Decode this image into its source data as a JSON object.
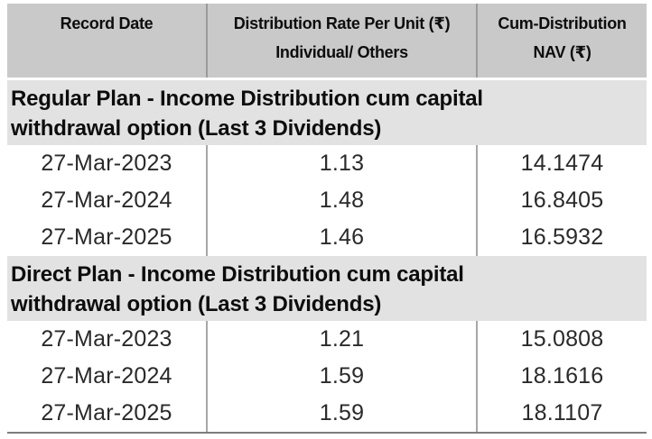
{
  "table": {
    "colors": {
      "header_bg": "#c9c9c9",
      "section_bg": "#e2e2e2",
      "divider": "#a8a8a8",
      "header_divider": "#9b9b9b",
      "bottom_border": "#7d7d7d",
      "header_text": "#0d0d0d",
      "data_text": "#2a2a2a"
    },
    "columns": [
      {
        "line1": "Record Date",
        "line2": ""
      },
      {
        "line1": "Distribution Rate Per Unit  (₹)",
        "line2": "Individual/ Others"
      },
      {
        "line1": "Cum-Distribution",
        "line2": "NAV (₹)"
      }
    ],
    "sections": [
      {
        "title": "Regular Plan - Income Distribution cum capital withdrawal option (Last 3 Dividends)",
        "title_line1": "Regular Plan - Income Distribution cum capital",
        "title_line2": "withdrawal option (Last 3 Dividends)",
        "rows": [
          {
            "record_date": "27-Mar-2023",
            "rate": "1.13",
            "nav": "14.1474"
          },
          {
            "record_date": "27-Mar-2024",
            "rate": "1.48",
            "nav": "16.8405"
          },
          {
            "record_date": "27-Mar-2025",
            "rate": "1.46",
            "nav": "16.5932"
          }
        ]
      },
      {
        "title": "Direct Plan - Income Distribution cum capital withdrawal option (Last 3 Dividends)",
        "title_line1": "Direct Plan - Income Distribution cum capital",
        "title_line2": "withdrawal option (Last 3 Dividends)",
        "rows": [
          {
            "record_date": "27-Mar-2023",
            "rate": "1.21",
            "nav": "15.0808"
          },
          {
            "record_date": "27-Mar-2024",
            "rate": "1.59",
            "nav": "18.1616"
          },
          {
            "record_date": "27-Mar-2025",
            "rate": "1.59",
            "nav": "18.1107"
          }
        ]
      }
    ]
  }
}
